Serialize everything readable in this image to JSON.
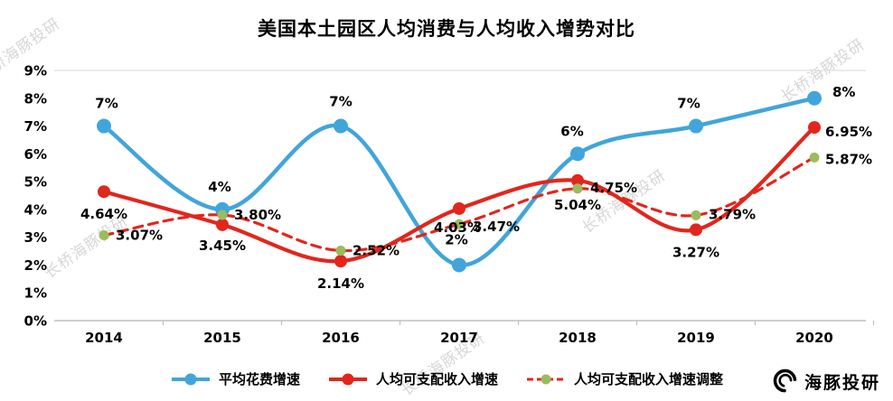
{
  "title": "美国本土园区人均消费与人均收入增势对比",
  "watermark": {
    "text": "长桥海豚投研"
  },
  "brand": {
    "name": "海豚投研"
  },
  "chart_data": {
    "type": "line",
    "x": [
      "2014",
      "2015",
      "2016",
      "2017",
      "2018",
      "2019",
      "2020"
    ],
    "ylim": [
      0,
      9
    ],
    "y_ticks": [
      "0%",
      "1%",
      "2%",
      "3%",
      "4%",
      "5%",
      "6%",
      "7%",
      "8%",
      "9%"
    ],
    "grid": false,
    "legend_position": "bottom",
    "smooth_lines": true,
    "series": [
      {
        "name": "平均花费增速",
        "color": "#41a5db",
        "marker_color": "#41a5db",
        "style": "solid",
        "values": [
          7,
          4,
          7,
          2,
          6,
          7,
          8
        ],
        "labels": [
          "7%",
          "4%",
          "7%",
          "2%",
          "6%",
          "7%",
          "8%"
        ]
      },
      {
        "name": "人均可支配收入增速",
        "color": "#e2261c",
        "marker_color": "#e2261c",
        "style": "solid",
        "values": [
          4.64,
          3.45,
          2.14,
          4.03,
          5.04,
          3.27,
          6.95
        ],
        "labels": [
          "4.64%",
          "3.45%",
          "2.14%",
          "4.03%",
          "5.04%",
          "3.27%",
          "6.95%"
        ]
      },
      {
        "name": "人均可支配收入增速调整",
        "color": "#e2261c",
        "marker_color": "#9cbb5e",
        "style": "dashed",
        "values": [
          3.07,
          3.8,
          2.52,
          3.47,
          4.75,
          3.79,
          5.87
        ],
        "labels": [
          "3.07%",
          "3.80%",
          "2.52%",
          "3.47%",
          "4.75%",
          "3.79%",
          "5.87%"
        ]
      }
    ]
  }
}
